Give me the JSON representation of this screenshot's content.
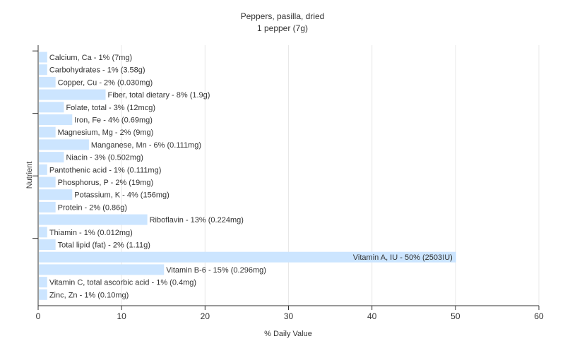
{
  "chart_data": {
    "type": "bar",
    "orientation": "horizontal",
    "title": "Peppers, pasilla, dried",
    "subtitle": "1 pepper (7g)",
    "xlabel": "% Daily Value",
    "ylabel": "Nutrient",
    "xlim": [
      0,
      60
    ],
    "xticks": [
      0,
      10,
      20,
      30,
      40,
      50,
      60
    ],
    "grid": true,
    "bar_color": "#cce5ff",
    "categories": [
      "Calcium, Ca",
      "Carbohydrates",
      "Copper, Cu",
      "Fiber, total dietary",
      "Folate, total",
      "Iron, Fe",
      "Magnesium, Mg",
      "Manganese, Mn",
      "Niacin",
      "Pantothenic acid",
      "Phosphorus, P",
      "Potassium, K",
      "Protein",
      "Riboflavin",
      "Thiamin",
      "Total lipid (fat)",
      "Vitamin A, IU",
      "Vitamin B-6",
      "Vitamin C, total ascorbic acid",
      "Zinc, Zn"
    ],
    "values": [
      1,
      1,
      2,
      8,
      3,
      4,
      2,
      6,
      3,
      1,
      2,
      4,
      2,
      13,
      1,
      2,
      50,
      15,
      1,
      1
    ],
    "data_labels": [
      "Calcium, Ca - 1% (7mg)",
      "Carbohydrates - 1% (3.58g)",
      "Copper, Cu - 2% (0.030mg)",
      "Fiber, total dietary - 8% (1.9g)",
      "Folate, total - 3% (12mcg)",
      "Iron, Fe - 4% (0.69mg)",
      "Magnesium, Mg - 2% (9mg)",
      "Manganese, Mn - 6% (0.111mg)",
      "Niacin - 3% (0.502mg)",
      "Pantothenic acid - 1% (0.111mg)",
      "Phosphorus, P - 2% (19mg)",
      "Potassium, K - 4% (156mg)",
      "Protein - 2% (0.86g)",
      "Riboflavin - 13% (0.224mg)",
      "Thiamin - 1% (0.012mg)",
      "Total lipid (fat) - 2% (1.11g)",
      "Vitamin A, IU - 50% (2503IU)",
      "Vitamin B-6 - 15% (0.296mg)",
      "Vitamin C, total ascorbic acid - 1% (0.4mg)",
      "Zinc, Zn - 1% (0.10mg)"
    ]
  }
}
